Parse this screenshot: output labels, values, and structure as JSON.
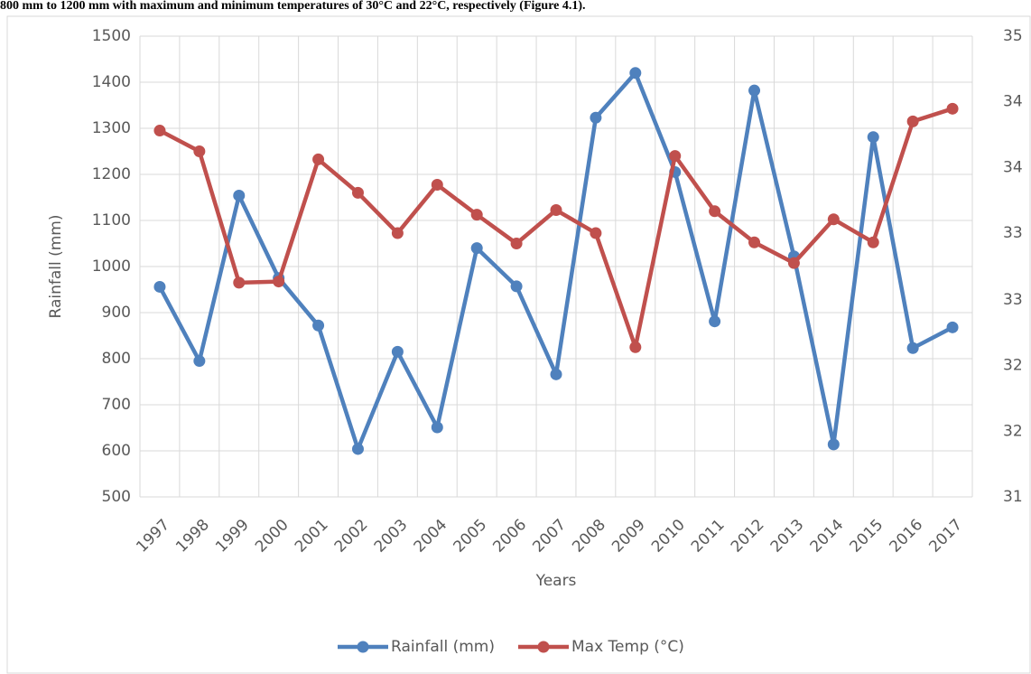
{
  "caption": "800 mm to 1200 mm with maximum and minimum temperatures of 30°C and 22°C, respectively (Figure 4.1).",
  "chart_data": {
    "type": "line",
    "xlabel": "Years",
    "ylabel": "Rainfall (mm)",
    "categories": [
      "1997",
      "1998",
      "1999",
      "2000",
      "2001",
      "2002",
      "2003",
      "2004",
      "2005",
      "2006",
      "2007",
      "2008",
      "2009",
      "2010",
      "2011",
      "2012",
      "2013",
      "2014",
      "2015",
      "2016",
      "2017"
    ],
    "series": [
      {
        "name": "Rainfall (mm)",
        "color": "#4f81bd",
        "values": [
          956,
          795,
          1154,
          975,
          872,
          604,
          815,
          651,
          1040,
          957,
          766,
          1323,
          1420,
          1205,
          881,
          1382,
          1022,
          614,
          1281,
          823,
          868
        ]
      },
      {
        "name": "Max Temp (°C)",
        "color": "#c0504d",
        "axis": "y2",
        "values": [
          34.18,
          34.0,
          32.86,
          32.87,
          33.93,
          33.64,
          33.29,
          33.71,
          33.45,
          33.2,
          33.49,
          33.29,
          32.3,
          33.96,
          33.48,
          33.21,
          33.03,
          33.41,
          33.21,
          34.26,
          34.37
        ]
      }
    ],
    "ylim": [
      500,
      1500
    ],
    "yticks": [
      500,
      600,
      700,
      800,
      900,
      1000,
      1100,
      1200,
      1300,
      1400,
      1500
    ],
    "y2lim": [
      31,
      35
    ],
    "y2ticks": [
      31,
      {
        "value": 31.57,
        "label": "32"
      },
      {
        "value": 32.14,
        "label": "32"
      },
      {
        "value": 32.71,
        "label": "33"
      },
      {
        "value": 33.29,
        "label": "33"
      },
      {
        "value": 33.86,
        "label": "34"
      },
      {
        "value": 34.43,
        "label": "34"
      },
      35
    ],
    "grid": true,
    "legend": "bottom"
  }
}
